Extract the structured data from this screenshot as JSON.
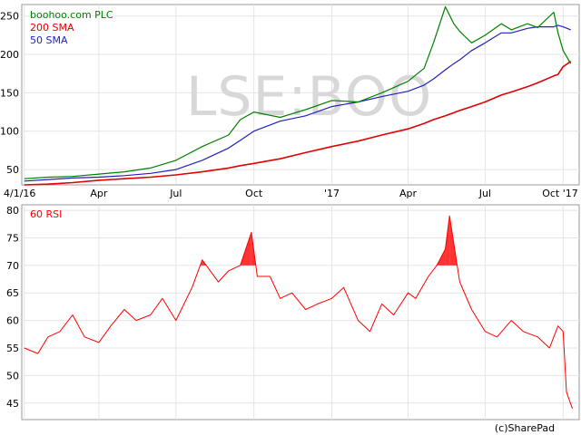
{
  "watermark": "LSE:BOO",
  "credit": "(c)SharePad",
  "colors": {
    "price": "#008000",
    "sma200": "#e00000",
    "sma50": "#2020c0",
    "rsi": "#ff0000",
    "rsi_fill": "#ff0000"
  },
  "chart_data": [
    {
      "type": "line",
      "legend": [
        "boohoo.com PLC",
        "200 SMA",
        "50 SMA"
      ],
      "legend_position": "top-left",
      "x_tick_labels": [
        "4/1/16",
        "Apr",
        "Jul",
        "Oct",
        "'17",
        "Apr",
        "Jul",
        "Oct '17"
      ],
      "y_tick_labels": [
        "50",
        "100",
        "150",
        "200",
        "250"
      ],
      "ylim": [
        30,
        265
      ],
      "grid": true,
      "x": [
        "2016-01-04",
        "2016-02-01",
        "2016-03-01",
        "2016-04-01",
        "2016-05-01",
        "2016-06-01",
        "2016-07-01",
        "2016-08-01",
        "2016-09-01",
        "2016-09-15",
        "2016-10-01",
        "2016-11-01",
        "2016-12-01",
        "2017-01-01",
        "2017-02-01",
        "2017-03-01",
        "2017-04-01",
        "2017-04-20",
        "2017-05-01",
        "2017-05-15",
        "2017-05-25",
        "2017-06-01",
        "2017-06-15",
        "2017-07-01",
        "2017-07-20",
        "2017-08-01",
        "2017-08-20",
        "2017-09-01",
        "2017-09-20",
        "2017-09-25",
        "2017-10-01",
        "2017-10-10"
      ],
      "series": [
        {
          "name": "boohoo.com PLC",
          "values": [
            38,
            40,
            41,
            44,
            47,
            52,
            62,
            80,
            95,
            115,
            125,
            118,
            128,
            140,
            138,
            150,
            165,
            182,
            215,
            262,
            240,
            230,
            215,
            225,
            240,
            232,
            240,
            235,
            255,
            228,
            205,
            188
          ]
        },
        {
          "name": "200 SMA",
          "values": [
            30,
            31,
            33,
            36,
            38,
            40,
            43,
            47,
            52,
            55,
            58,
            64,
            72,
            80,
            87,
            95,
            103,
            110,
            115,
            120,
            124,
            127,
            132,
            138,
            147,
            151,
            158,
            163,
            172,
            174,
            184,
            191
          ]
        },
        {
          "name": "50 SMA",
          "values": [
            35,
            37,
            39,
            40,
            42,
            45,
            50,
            62,
            78,
            88,
            100,
            113,
            120,
            132,
            138,
            145,
            152,
            160,
            168,
            180,
            188,
            193,
            205,
            215,
            228,
            228,
            234,
            236,
            236,
            238,
            236,
            232
          ]
        }
      ]
    },
    {
      "type": "line",
      "legend": [
        "60 RSI"
      ],
      "legend_position": "top-left",
      "x_tick_labels": [],
      "y_tick_labels": [
        "45",
        "50",
        "55",
        "60",
        "65",
        "70",
        "75",
        "80"
      ],
      "ylim": [
        42,
        81
      ],
      "grid": true,
      "fill_above": 70,
      "x": [
        "2016-01-04",
        "2016-01-20",
        "2016-02-01",
        "2016-02-15",
        "2016-03-01",
        "2016-03-15",
        "2016-04-01",
        "2016-04-15",
        "2016-05-01",
        "2016-05-15",
        "2016-06-01",
        "2016-06-15",
        "2016-07-01",
        "2016-07-20",
        "2016-08-01",
        "2016-08-20",
        "2016-09-01",
        "2016-09-15",
        "2016-09-28",
        "2016-10-05",
        "2016-10-20",
        "2016-11-01",
        "2016-11-15",
        "2016-12-01",
        "2016-12-15",
        "2017-01-01",
        "2017-01-15",
        "2017-02-01",
        "2017-02-15",
        "2017-03-01",
        "2017-03-15",
        "2017-04-01",
        "2017-04-10",
        "2017-04-25",
        "2017-05-05",
        "2017-05-15",
        "2017-05-20",
        "2017-06-01",
        "2017-06-15",
        "2017-07-01",
        "2017-07-15",
        "2017-08-01",
        "2017-08-15",
        "2017-09-01",
        "2017-09-15",
        "2017-09-25",
        "2017-10-01",
        "2017-10-05",
        "2017-10-12"
      ],
      "series": [
        {
          "name": "60 RSI",
          "values": [
            55,
            54,
            57,
            58,
            61,
            57,
            56,
            59,
            62,
            60,
            61,
            64,
            60,
            66,
            71,
            67,
            69,
            70,
            76,
            68,
            68,
            64,
            65,
            62,
            63,
            64,
            66,
            60,
            58,
            63,
            61,
            65,
            64,
            68,
            70,
            73,
            79,
            67,
            62,
            58,
            57,
            60,
            58,
            57,
            55,
            59,
            58,
            47,
            44
          ]
        }
      ]
    }
  ]
}
